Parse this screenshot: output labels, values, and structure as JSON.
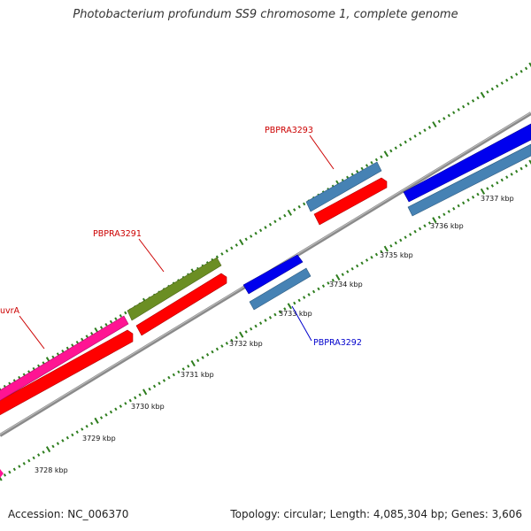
{
  "title": "Photobacterium profundum SS9 chromosome 1, complete genome",
  "footer": {
    "accession": "Accession: NC_006370",
    "summary": "Topology: circular; Length: 4,085,304 bp; Genes: 3,606"
  },
  "colors": {
    "backbone": "#888888",
    "tick": "#2e7d1e",
    "forward_cds": "#4682b4",
    "reverse_cds": "#ff0000",
    "blue_cds": "#0000ee",
    "green_cds": "#6b8e23",
    "pink_cds": "#ff1493",
    "label_red": "#cc0000",
    "label_blue": "#0000cc"
  },
  "scale_labels": [
    "3728 kbp",
    "3729 kbp",
    "3730 kbp",
    "3731 kbp",
    "3732 kbp",
    "3733 kbp",
    "3734 kbp",
    "3735 kbp",
    "3736 kbp",
    "3737 kbp"
  ],
  "gene_labels": {
    "uvrA": "uvrA",
    "PBPRA3291": "PBPRA3291",
    "PBPRA3292": "PBPRA3292",
    "PBPRA3293": "PBPRA3293"
  }
}
